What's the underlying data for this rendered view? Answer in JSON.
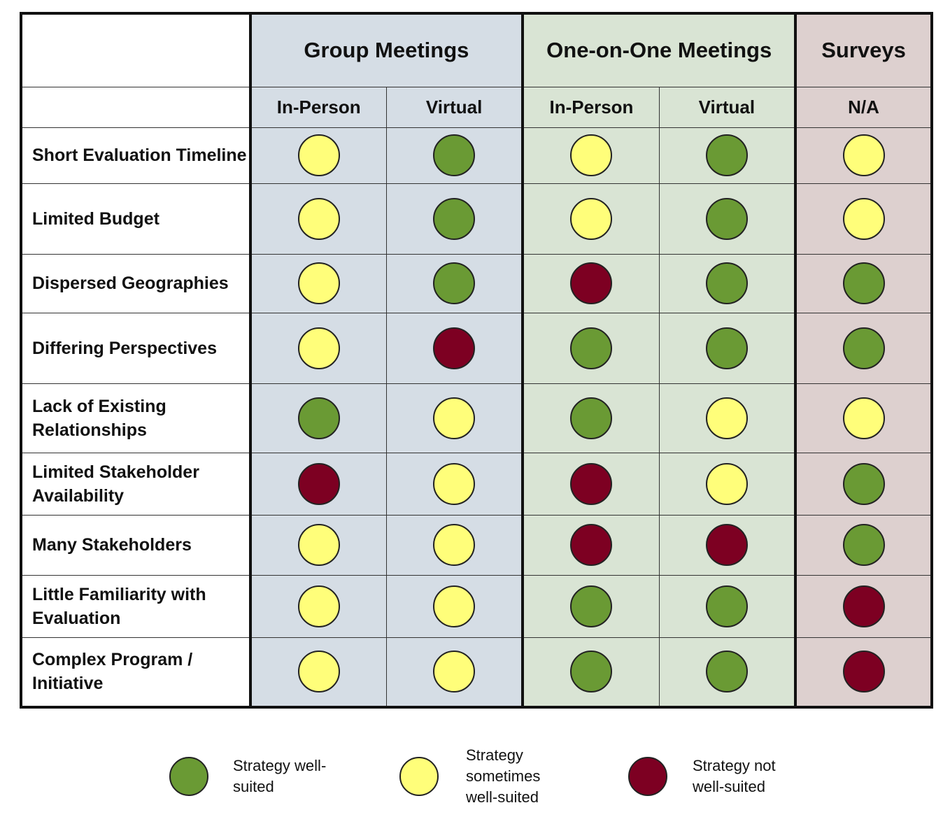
{
  "header": {
    "groups": [
      {
        "label": "Group Meetings"
      },
      {
        "label": "One-on-One Meetings"
      },
      {
        "label": "Surveys"
      }
    ],
    "subheaders": [
      "In-Person",
      "Virtual",
      "In-Person",
      "Virtual",
      "N/A"
    ]
  },
  "colors": {
    "well_suited": "#6a9a34",
    "sometimes": "#fffe7a",
    "not_suited": "#7d0022",
    "group_bg": "#d5dde5",
    "one_on_one_bg": "#d9e4d4",
    "surveys_bg": "#ddd0cf"
  },
  "rows": [
    {
      "label": "Short Evaluation Timeline",
      "ratings": [
        "sometimes",
        "well",
        "sometimes",
        "well",
        "sometimes"
      ]
    },
    {
      "label": "Limited Budget",
      "ratings": [
        "sometimes",
        "well",
        "sometimes",
        "well",
        "sometimes"
      ]
    },
    {
      "label": "Dispersed Geographies",
      "ratings": [
        "sometimes",
        "well",
        "not",
        "well",
        "well"
      ]
    },
    {
      "label": "Differing Perspectives",
      "ratings": [
        "sometimes",
        "not",
        "well",
        "well",
        "well"
      ]
    },
    {
      "label": "Lack of Existing Relationships",
      "ratings": [
        "well",
        "sometimes",
        "well",
        "sometimes",
        "sometimes"
      ]
    },
    {
      "label": "Limited Stakeholder Availability",
      "ratings": [
        "not",
        "sometimes",
        "not",
        "sometimes",
        "well"
      ]
    },
    {
      "label": "Many Stakeholders",
      "ratings": [
        "sometimes",
        "sometimes",
        "not",
        "not",
        "well"
      ]
    },
    {
      "label": "Little Familiarity with Evaluation",
      "ratings": [
        "sometimes",
        "sometimes",
        "well",
        "well",
        "not"
      ]
    },
    {
      "label": "Complex Program / Initiative",
      "ratings": [
        "sometimes",
        "sometimes",
        "well",
        "well",
        "not"
      ]
    }
  ],
  "legend": {
    "well": "Strategy well-suited",
    "sometimes": "Strategy sometimes well-suited",
    "not": "Strategy not well-suited"
  }
}
